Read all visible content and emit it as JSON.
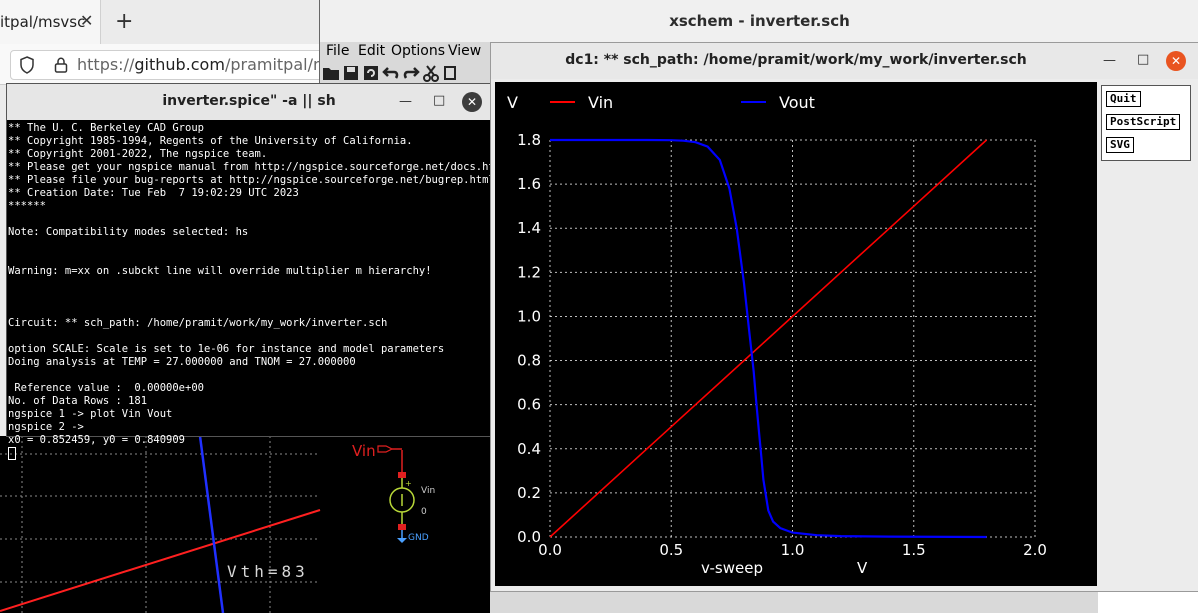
{
  "browser": {
    "tab_title": "itpal/msvsc",
    "tab_close": "✕",
    "new_tab": "+",
    "url_scheme": "https://",
    "url_host": "github.com",
    "url_path": "/pramitpal/msvs"
  },
  "xschem": {
    "title": "xschem - inverter.sch",
    "menu": [
      "File",
      "Edit",
      "Options",
      "View"
    ]
  },
  "terminal": {
    "title": "inverter.spice\" -a || sh",
    "lines": [
      "** The U. C. Berkeley CAD Group",
      "** Copyright 1985-1994, Regents of the University of California.",
      "** Copyright 2001-2022, The ngspice team.",
      "** Please get your ngspice manual from http://ngspice.sourceforge.net/docs.html",
      "** Please file your bug-reports at http://ngspice.sourceforge.net/bugrep.html",
      "** Creation Date: Tue Feb  7 19:02:29 UTC 2023",
      "******",
      "",
      "Note: Compatibility modes selected: hs",
      "",
      "",
      "Warning: m=xx on .subckt line will override multiplier m hierarchy!",
      "",
      "",
      "",
      "Circuit: ** sch_path: /home/pramit/work/my_work/inverter.sch",
      "",
      "option SCALE: Scale is set to 1e-06 for instance and model parameters",
      "Doing analysis at TEMP = 27.000000 and TNOM = 27.000000",
      "",
      " Reference value :  0.00000e+00",
      "No. of Data Rows : 181",
      "ngspice 1 -> plot Vin Vout",
      "ngspice 2 ->",
      "x0 = 0.852459, y0 = 0.840909"
    ]
  },
  "schematic": {
    "pin_label": "Vin",
    "source_name": "Vin",
    "source_value": "0",
    "gnd_label": "GND",
    "vth_label": "Vth=83"
  },
  "plot": {
    "title": "dc1: ** sch_path: /home/pramit/work/my_work/inverter.sch",
    "buttons": [
      "Quit",
      "PostScript",
      "SVG"
    ]
  },
  "colors": {
    "vin": "#ff0000",
    "vout": "#0000ff",
    "grid": "#ffffff",
    "background": "#000000"
  },
  "chart_data": {
    "type": "line",
    "ylabel": "V",
    "xlabel": "v-sweep",
    "xunit": "V",
    "xlim": [
      0.0,
      2.0
    ],
    "ylim": [
      0.0,
      1.8
    ],
    "xticks": [
      "0.0",
      "0.5",
      "1.0",
      "1.5",
      "2.0"
    ],
    "yticks": [
      "0.0",
      "0.2",
      "0.4",
      "0.6",
      "0.8",
      "1.0",
      "1.2",
      "1.4",
      "1.6",
      "1.8"
    ],
    "grid": true,
    "legend_position": "top",
    "series": [
      {
        "name": "Vin",
        "color": "#ff0000",
        "x": [
          0.0,
          0.3,
          0.6,
          0.9,
          1.2,
          1.5,
          1.8
        ],
        "y": [
          0.0,
          0.3,
          0.6,
          0.9,
          1.2,
          1.5,
          1.8
        ]
      },
      {
        "name": "Vout",
        "color": "#0000ff",
        "x": [
          0.0,
          0.4,
          0.5,
          0.55,
          0.6,
          0.65,
          0.7,
          0.74,
          0.77,
          0.8,
          0.82,
          0.84,
          0.85,
          0.86,
          0.87,
          0.88,
          0.9,
          0.92,
          0.95,
          1.0,
          1.1,
          1.2,
          1.4,
          1.8
        ],
        "y": [
          1.8,
          1.8,
          1.799,
          1.797,
          1.79,
          1.77,
          1.71,
          1.58,
          1.4,
          1.15,
          0.95,
          0.75,
          0.62,
          0.5,
          0.38,
          0.26,
          0.12,
          0.07,
          0.04,
          0.02,
          0.008,
          0.004,
          0.002,
          0.0
        ]
      }
    ]
  }
}
